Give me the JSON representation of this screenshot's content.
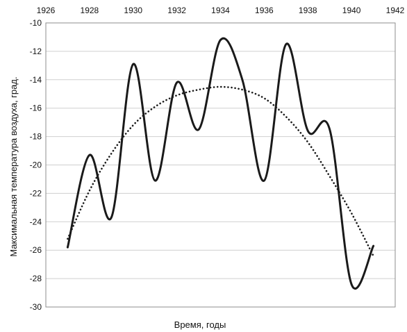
{
  "chart_data": {
    "type": "line",
    "xlabel": "Время, годы",
    "ylabel": "Максимальная температура воздуха, град.",
    "xlim": [
      1926,
      1942
    ],
    "ylim": [
      -30,
      -10
    ],
    "x_ticks": [
      1926,
      1928,
      1930,
      1932,
      1934,
      1936,
      1938,
      1940,
      1942
    ],
    "y_ticks": [
      -10,
      -12,
      -14,
      -16,
      -18,
      -20,
      -22,
      -24,
      -26,
      -28,
      -30
    ],
    "x_axis_position": "top",
    "grid": "horizontal",
    "legend": "none",
    "series": [
      {
        "style": "solid",
        "color": "#1a1a1a",
        "x": [
          1927,
          1928,
          1929,
          1930,
          1931,
          1932,
          1933,
          1934,
          1935,
          1936,
          1937,
          1938,
          1939,
          1940,
          1941
        ],
        "y": [
          -25.8,
          -19.3,
          -23.7,
          -12.9,
          -21.1,
          -14.2,
          -17.5,
          -11.2,
          -14.0,
          -21.1,
          -11.5,
          -17.6,
          -17.5,
          -28.4,
          -25.7
        ]
      },
      {
        "style": "dotted",
        "color": "#1a1a1a",
        "x": [
          1927,
          1928,
          1929,
          1930,
          1931,
          1932,
          1933,
          1934,
          1935,
          1936,
          1937,
          1938,
          1939,
          1940,
          1941
        ],
        "y": [
          -25.2,
          -21.8,
          -19.2,
          -17.2,
          -15.9,
          -15.1,
          -14.7,
          -14.5,
          -14.7,
          -15.3,
          -16.6,
          -18.4,
          -20.8,
          -23.4,
          -26.4
        ]
      }
    ]
  }
}
